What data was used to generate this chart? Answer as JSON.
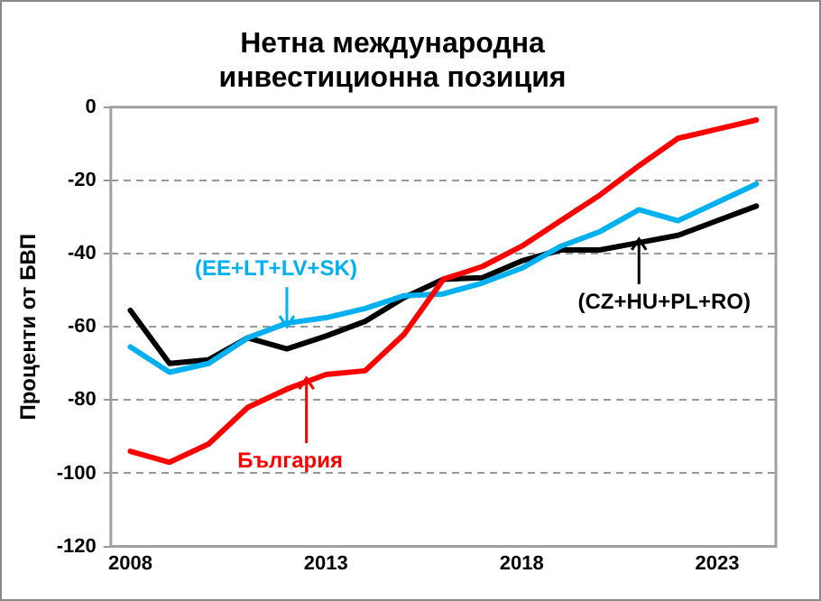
{
  "chart_data": {
    "type": "line",
    "title": "Нетна международна\nинвестиционна позиция",
    "ylabel": "Проценти от БВП",
    "x": [
      2008,
      2009,
      2010,
      2011,
      2012,
      2013,
      2014,
      2015,
      2016,
      2017,
      2018,
      2019,
      2020,
      2021,
      2022,
      2023,
      2024
    ],
    "xlim": [
      2007.5,
      2024.5
    ],
    "xticks": [
      2008,
      2013,
      2018,
      2023
    ],
    "ylim": [
      -120,
      0
    ],
    "yticks": [
      -120,
      -100,
      -80,
      -60,
      -40,
      -20,
      0
    ],
    "series": [
      {
        "color": "#ff0000",
        "values": [
          -94,
          -97,
          -92,
          -82,
          -77,
          -73,
          -72,
          -62,
          -47,
          -43.5,
          -38,
          -31,
          -24,
          -16,
          -8.5,
          -6,
          -3.5
        ]
      },
      {
        "color": "#00b0f0",
        "values": [
          -65.5,
          -72.4,
          -70,
          -63,
          -59,
          -57.5,
          -55,
          -51.5,
          -51,
          -48,
          -44,
          -38,
          -34,
          -28,
          -31,
          -26,
          -21
        ]
      },
      {
        "color": "#000000",
        "values": [
          -55.5,
          -70,
          -69,
          -63,
          -66,
          -62.5,
          -58.5,
          -52,
          -47,
          -46.6,
          -42,
          -39,
          -39,
          -37,
          -35,
          -31,
          -27
        ]
      }
    ],
    "annotations": [
      {
        "text": "(EE+LT+LV+SK)",
        "x": 2012,
        "y": -59
      },
      {
        "text": "(CZ+HU+PL+RO)",
        "x": 2021,
        "y": -37
      },
      {
        "text": "България",
        "x": 2012.5,
        "y": -75
      }
    ],
    "grid": "y",
    "legend": false,
    "marker": "none",
    "line_style": "solid"
  }
}
